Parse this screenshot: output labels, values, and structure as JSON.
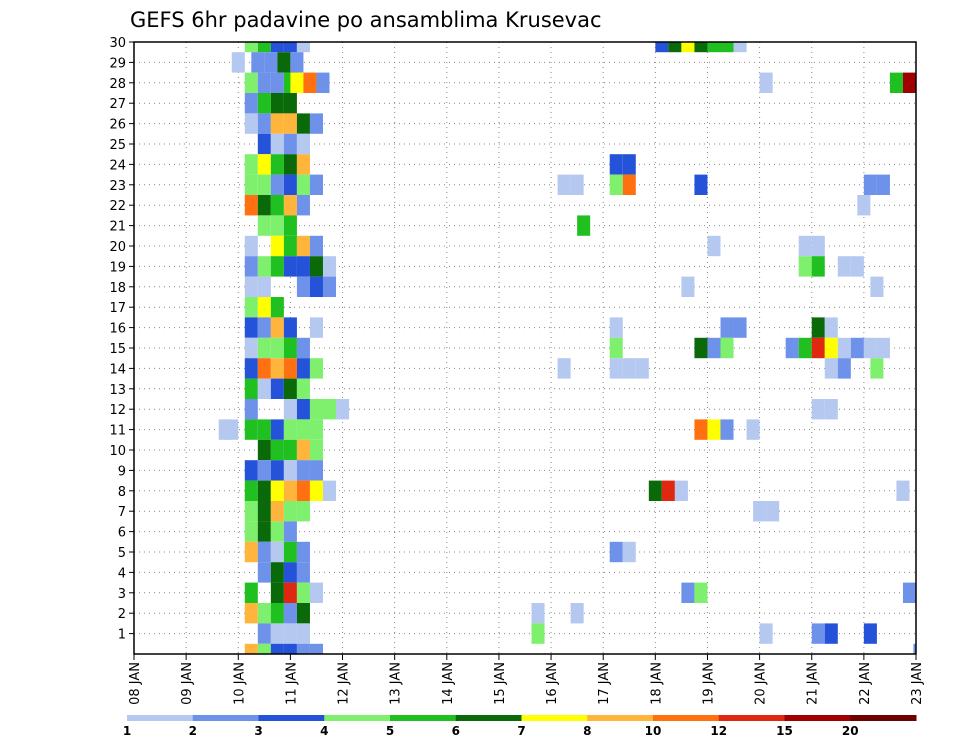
{
  "chart_data": {
    "type": "heatmap",
    "title": "GEFS 6hr padavine po ansamblima Krusevac",
    "xlabel": "",
    "ylabel": "",
    "x_range": [
      0,
      60
    ],
    "x_ticks": [
      {
        "t": 0,
        "label": "08 JAN"
      },
      {
        "t": 4,
        "label": "09 JAN"
      },
      {
        "t": 8,
        "label": "10 JAN"
      },
      {
        "t": 12,
        "label": "11 JAN"
      },
      {
        "t": 16,
        "label": "12 JAN"
      },
      {
        "t": 20,
        "label": "13 JAN"
      },
      {
        "t": 24,
        "label": "14 JAN"
      },
      {
        "t": 28,
        "label": "15 JAN"
      },
      {
        "t": 32,
        "label": "16 JAN"
      },
      {
        "t": 36,
        "label": "17 JAN"
      },
      {
        "t": 40,
        "label": "18 JAN"
      },
      {
        "t": 44,
        "label": "19 JAN"
      },
      {
        "t": 48,
        "label": "20 JAN"
      },
      {
        "t": 52,
        "label": "21 JAN"
      },
      {
        "t": 56,
        "label": "22 JAN"
      },
      {
        "t": 60,
        "label": "23 JAN"
      }
    ],
    "y_range": [
      0,
      30
    ],
    "y_ticks": [
      "1",
      "2",
      "3",
      "4",
      "5",
      "6",
      "7",
      "8",
      "9",
      "10",
      "11",
      "12",
      "13",
      "14",
      "15",
      "16",
      "17",
      "18",
      "19",
      "20",
      "21",
      "22",
      "23",
      "24",
      "25",
      "26",
      "27",
      "28",
      "29",
      "30"
    ],
    "grid": true,
    "colorbar": {
      "labels": [
        "1",
        "2",
        "3",
        "4",
        "5",
        "6",
        "7",
        "8",
        "10",
        "12",
        "15",
        "20"
      ],
      "colors": [
        "#b4c8f0",
        "#6e91ea",
        "#2452d8",
        "#7ef06e",
        "#20c020",
        "#0a6a0a",
        "#ffff00",
        "#ffb43c",
        "#ff7010",
        "#e02810",
        "#a00000",
        "#6e0000"
      ]
    },
    "cells": [
      [
        30,
        8.5,
        1,
        4
      ],
      [
        30,
        9.5,
        1,
        5
      ],
      [
        30,
        10.5,
        1,
        3
      ],
      [
        30,
        11.5,
        1,
        3
      ],
      [
        30,
        12.5,
        1,
        1
      ],
      [
        30,
        40,
        1,
        3
      ],
      [
        30,
        41,
        1,
        6
      ],
      [
        30,
        42,
        1,
        7
      ],
      [
        30,
        43,
        1,
        6
      ],
      [
        30,
        44,
        1,
        5
      ],
      [
        30,
        45,
        1,
        5
      ],
      [
        30,
        46,
        1,
        1
      ],
      [
        29,
        7.5,
        1,
        1
      ],
      [
        29,
        9,
        1,
        2
      ],
      [
        29,
        10,
        1,
        2
      ],
      [
        29,
        11,
        1,
        6
      ],
      [
        29,
        12,
        1,
        2
      ],
      [
        28,
        8.5,
        1,
        4
      ],
      [
        28,
        9.5,
        1,
        2
      ],
      [
        28,
        10.5,
        1,
        2
      ],
      [
        28,
        11.5,
        1,
        5
      ],
      [
        28,
        12,
        1,
        7
      ],
      [
        28,
        13,
        1,
        9
      ],
      [
        28,
        14,
        1,
        2
      ],
      [
        28,
        48,
        1,
        1
      ],
      [
        28,
        58,
        1,
        5
      ],
      [
        28,
        59,
        1,
        11
      ],
      [
        28,
        60,
        1,
        1
      ],
      [
        27,
        8.5,
        1,
        2
      ],
      [
        27,
        9.5,
        1,
        5
      ],
      [
        27,
        10.5,
        1,
        6
      ],
      [
        27,
        11.5,
        1,
        6
      ],
      [
        26,
        8.5,
        1,
        1
      ],
      [
        26,
        9.5,
        1,
        2
      ],
      [
        26,
        10.5,
        1,
        8
      ],
      [
        26,
        11.5,
        1,
        8
      ],
      [
        26,
        12.5,
        1,
        6
      ],
      [
        26,
        13.5,
        1,
        2
      ],
      [
        25,
        9.5,
        1,
        3
      ],
      [
        25,
        10.5,
        1,
        1
      ],
      [
        25,
        11.5,
        1,
        2
      ],
      [
        25,
        12.5,
        1,
        1
      ],
      [
        24,
        8.5,
        1,
        4
      ],
      [
        24,
        9.5,
        1,
        7
      ],
      [
        24,
        10.5,
        1,
        5
      ],
      [
        24,
        11.5,
        1,
        6
      ],
      [
        24,
        12.5,
        1,
        8
      ],
      [
        24,
        36.5,
        1,
        3
      ],
      [
        24,
        37.5,
        1,
        3
      ],
      [
        23,
        8.5,
        1,
        4
      ],
      [
        23,
        9.5,
        1,
        4
      ],
      [
        23,
        10.5,
        1,
        2
      ],
      [
        23,
        11.5,
        1,
        3
      ],
      [
        23,
        12.5,
        1,
        4
      ],
      [
        23,
        13.5,
        1,
        2
      ],
      [
        23,
        32.5,
        1,
        1
      ],
      [
        23,
        33.5,
        1,
        1
      ],
      [
        23,
        36.5,
        1,
        4
      ],
      [
        23,
        37.5,
        1,
        9
      ],
      [
        23,
        43,
        1,
        3
      ],
      [
        23,
        56,
        1,
        2
      ],
      [
        23,
        57,
        1,
        2
      ],
      [
        22,
        8.5,
        1,
        9
      ],
      [
        22,
        9.5,
        1,
        6
      ],
      [
        22,
        10.5,
        1,
        5
      ],
      [
        22,
        11.5,
        1,
        8
      ],
      [
        22,
        12.5,
        1,
        2
      ],
      [
        22,
        55.5,
        1,
        1
      ],
      [
        21,
        9.5,
        1,
        4
      ],
      [
        21,
        10.5,
        1,
        4
      ],
      [
        21,
        11.5,
        1,
        5
      ],
      [
        21,
        34,
        1,
        5
      ],
      [
        20,
        8.5,
        1,
        1
      ],
      [
        20,
        10.5,
        1,
        7
      ],
      [
        20,
        11.5,
        1,
        5
      ],
      [
        20,
        12.5,
        1,
        8
      ],
      [
        20,
        13.5,
        1,
        2
      ],
      [
        20,
        44,
        1,
        1
      ],
      [
        20,
        51,
        1,
        1
      ],
      [
        20,
        52,
        1,
        1
      ],
      [
        19,
        8.5,
        1,
        2
      ],
      [
        19,
        9.5,
        1,
        4
      ],
      [
        19,
        10.5,
        1,
        5
      ],
      [
        19,
        11.5,
        1,
        3
      ],
      [
        19,
        12.5,
        1,
        3
      ],
      [
        19,
        13.5,
        1,
        6
      ],
      [
        19,
        14.5,
        1,
        1
      ],
      [
        19,
        51,
        1,
        4
      ],
      [
        19,
        52,
        1,
        5
      ],
      [
        19,
        54,
        1,
        1
      ],
      [
        19,
        55,
        1,
        1
      ],
      [
        18,
        8.5,
        1,
        1
      ],
      [
        18,
        9.5,
        1,
        1
      ],
      [
        18,
        12.5,
        1,
        2
      ],
      [
        18,
        13.5,
        1,
        3
      ],
      [
        18,
        14.5,
        1,
        2
      ],
      [
        18,
        42,
        1,
        1
      ],
      [
        18,
        56.5,
        1,
        1
      ],
      [
        17,
        8.5,
        1,
        4
      ],
      [
        17,
        9.5,
        1,
        7
      ],
      [
        17,
        10.5,
        1,
        5
      ],
      [
        16,
        8.5,
        1,
        3
      ],
      [
        16,
        9.5,
        1,
        2
      ],
      [
        16,
        10.5,
        1,
        8
      ],
      [
        16,
        11.5,
        1,
        3
      ],
      [
        16,
        13.5,
        1,
        1
      ],
      [
        16,
        36.5,
        1,
        1
      ],
      [
        16,
        45,
        1,
        2
      ],
      [
        16,
        46,
        1,
        2
      ],
      [
        16,
        52,
        1,
        6
      ],
      [
        16,
        53,
        1,
        1
      ],
      [
        15,
        8.5,
        1,
        1
      ],
      [
        15,
        9.5,
        1,
        4
      ],
      [
        15,
        10.5,
        1,
        4
      ],
      [
        15,
        11.5,
        1,
        5
      ],
      [
        15,
        12.5,
        1,
        2
      ],
      [
        15,
        36.5,
        1,
        4
      ],
      [
        15,
        43,
        1,
        6
      ],
      [
        15,
        44,
        1,
        2
      ],
      [
        15,
        45,
        1,
        4
      ],
      [
        15,
        50,
        1,
        2
      ],
      [
        15,
        51,
        1,
        5
      ],
      [
        15,
        52,
        1,
        10
      ],
      [
        15,
        53,
        1,
        7
      ],
      [
        15,
        54,
        1,
        1
      ],
      [
        15,
        55,
        1,
        2
      ],
      [
        15,
        56,
        1,
        1
      ],
      [
        15,
        57,
        1,
        1
      ],
      [
        14,
        8.5,
        1,
        3
      ],
      [
        14,
        9.5,
        1,
        9
      ],
      [
        14,
        10.5,
        1,
        8
      ],
      [
        14,
        11.5,
        1,
        9
      ],
      [
        14,
        12.5,
        1,
        3
      ],
      [
        14,
        13.5,
        1,
        4
      ],
      [
        14,
        32.5,
        1,
        1
      ],
      [
        14,
        36.5,
        1,
        1
      ],
      [
        14,
        37.5,
        1,
        1
      ],
      [
        14,
        38.5,
        1,
        1
      ],
      [
        14,
        53,
        1,
        1
      ],
      [
        14,
        54,
        1,
        2
      ],
      [
        14,
        56.5,
        1,
        4
      ],
      [
        13,
        8.5,
        1,
        5
      ],
      [
        13,
        9.5,
        1,
        1
      ],
      [
        13,
        10.5,
        1,
        3
      ],
      [
        13,
        11.5,
        1,
        6
      ],
      [
        13,
        12.5,
        1,
        4
      ],
      [
        12,
        8.5,
        1,
        2
      ],
      [
        12,
        11.5,
        1,
        1
      ],
      [
        12,
        12.5,
        1,
        3
      ],
      [
        12,
        13.5,
        1,
        4
      ],
      [
        12,
        14.5,
        1,
        4
      ],
      [
        12,
        15.5,
        1,
        1
      ],
      [
        12,
        52,
        1,
        1
      ],
      [
        12,
        53,
        1,
        1
      ],
      [
        11,
        8.5,
        1,
        5
      ],
      [
        11,
        9.5,
        1,
        5
      ],
      [
        11,
        10.5,
        1,
        3
      ],
      [
        11,
        11.5,
        1,
        4
      ],
      [
        11,
        12.5,
        1,
        4
      ],
      [
        11,
        13.5,
        1,
        4
      ],
      [
        11,
        7,
        1,
        1
      ],
      [
        11,
        6.5,
        1,
        1
      ],
      [
        11,
        43,
        1,
        9
      ],
      [
        11,
        44,
        1,
        7
      ],
      [
        11,
        45,
        1,
        2
      ],
      [
        11,
        47,
        1,
        1
      ],
      [
        10,
        9.5,
        1,
        6
      ],
      [
        10,
        10.5,
        1,
        5
      ],
      [
        10,
        11.5,
        1,
        5
      ],
      [
        10,
        12.5,
        1,
        8
      ],
      [
        10,
        13.5,
        1,
        4
      ],
      [
        9,
        8.5,
        1,
        3
      ],
      [
        9,
        9.5,
        1,
        2
      ],
      [
        9,
        10.5,
        1,
        3
      ],
      [
        9,
        11.5,
        1,
        1
      ],
      [
        9,
        12.5,
        1,
        2
      ],
      [
        9,
        13.5,
        1,
        2
      ],
      [
        8,
        8.5,
        1,
        5
      ],
      [
        8,
        9.5,
        1,
        6
      ],
      [
        8,
        10.5,
        1,
        7
      ],
      [
        8,
        11.5,
        1,
        8
      ],
      [
        8,
        12.5,
        1,
        9
      ],
      [
        8,
        13.5,
        1,
        7
      ],
      [
        8,
        14.5,
        1,
        1
      ],
      [
        8,
        39.5,
        1,
        6
      ],
      [
        8,
        40.5,
        1,
        10
      ],
      [
        8,
        41.5,
        1,
        1
      ],
      [
        8,
        58.5,
        1,
        1
      ],
      [
        7,
        8.5,
        1,
        4
      ],
      [
        7,
        9.5,
        1,
        6
      ],
      [
        7,
        10.5,
        1,
        8
      ],
      [
        7,
        11.5,
        1,
        4
      ],
      [
        7,
        12.5,
        1,
        4
      ],
      [
        7,
        47.5,
        1,
        1
      ],
      [
        7,
        48.5,
        1,
        1
      ],
      [
        6,
        8.5,
        1,
        4
      ],
      [
        6,
        9.5,
        1,
        6
      ],
      [
        6,
        10.5,
        1,
        4
      ],
      [
        6,
        11.5,
        1,
        2
      ],
      [
        5,
        8.5,
        1,
        8
      ],
      [
        5,
        9.5,
        1,
        2
      ],
      [
        5,
        10.5,
        1,
        1
      ],
      [
        5,
        11.5,
        1,
        5
      ],
      [
        5,
        12.5,
        1,
        2
      ],
      [
        5,
        36.5,
        1,
        2
      ],
      [
        5,
        37.5,
        1,
        1
      ],
      [
        4,
        9.5,
        1,
        2
      ],
      [
        4,
        10.5,
        1,
        6
      ],
      [
        4,
        11.5,
        1,
        3
      ],
      [
        4,
        12.5,
        1,
        2
      ],
      [
        3,
        8.5,
        1,
        5
      ],
      [
        3,
        10.5,
        1,
        6
      ],
      [
        3,
        11.5,
        1,
        10
      ],
      [
        3,
        12.5,
        1,
        4
      ],
      [
        3,
        13.5,
        1,
        1
      ],
      [
        3,
        42,
        1,
        2
      ],
      [
        3,
        43,
        1,
        4
      ],
      [
        3,
        59,
        1,
        2
      ],
      [
        2,
        8.5,
        1,
        8
      ],
      [
        2,
        9.5,
        1,
        4
      ],
      [
        2,
        10.5,
        1,
        5
      ],
      [
        2,
        11.5,
        1,
        2
      ],
      [
        2,
        12.5,
        1,
        6
      ],
      [
        2,
        30.5,
        1,
        1
      ],
      [
        2,
        33.5,
        1,
        1
      ],
      [
        1,
        9.5,
        1,
        2
      ],
      [
        1,
        10.5,
        1,
        1
      ],
      [
        1,
        11.5,
        1,
        1
      ],
      [
        1,
        12.5,
        1,
        1
      ],
      [
        1,
        30.5,
        1,
        4
      ],
      [
        1,
        48,
        1,
        1
      ],
      [
        1,
        52,
        1,
        2
      ],
      [
        1,
        53,
        1,
        3
      ],
      [
        1,
        56,
        1,
        3
      ],
      [
        0,
        8.5,
        1,
        8
      ],
      [
        0,
        9.5,
        1,
        4
      ],
      [
        0,
        10.5,
        1,
        3
      ],
      [
        0,
        11.5,
        1,
        3
      ],
      [
        0,
        12.5,
        1,
        2
      ],
      [
        0,
        13.5,
        1,
        2
      ],
      [
        0,
        59.8,
        0.2,
        2
      ]
    ]
  }
}
